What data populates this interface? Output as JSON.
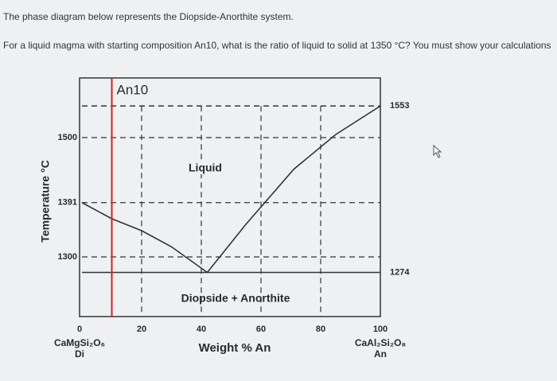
{
  "question": {
    "line1": "The phase diagram below represents the Diopside-Anorthite system.",
    "line2": "For a liquid magma with starting composition An10, what is the ratio of liquid to solid at 1350 °C? You must show your calculations"
  },
  "chart_data": {
    "type": "line",
    "ylabel": "Temperature °C",
    "xlabel": "Weight % An",
    "xlim": [
      0,
      100
    ],
    "ylim": [
      1200,
      1600
    ],
    "xticks": [
      0,
      20,
      40,
      60,
      80,
      100
    ],
    "yticks": [
      1300,
      1391,
      1500
    ],
    "grid": true,
    "series": [
      {
        "color": "#333333",
        "x": [
          0,
          10,
          20,
          30,
          42
        ],
        "values": [
          1391,
          1364,
          1344,
          1317,
          1274
        ]
      },
      {
        "color": "#333333",
        "x": [
          42,
          55,
          71,
          85,
          100
        ],
        "values": [
          1274,
          1355,
          1447,
          1505,
          1553
        ]
      }
    ],
    "temperature_labels": [
      1553,
      1274
    ],
    "composition": {
      "label": "An10",
      "x": 10,
      "color": "#d62020"
    },
    "region_labels": [
      "Liquid",
      "Diopside + Anorthite"
    ],
    "end_members": [
      {
        "formula": "CaMgSi₂O₆",
        "abbr": "Di"
      },
      {
        "formula": "CaAl₂Si₂O₈",
        "abbr": "An"
      }
    ]
  }
}
